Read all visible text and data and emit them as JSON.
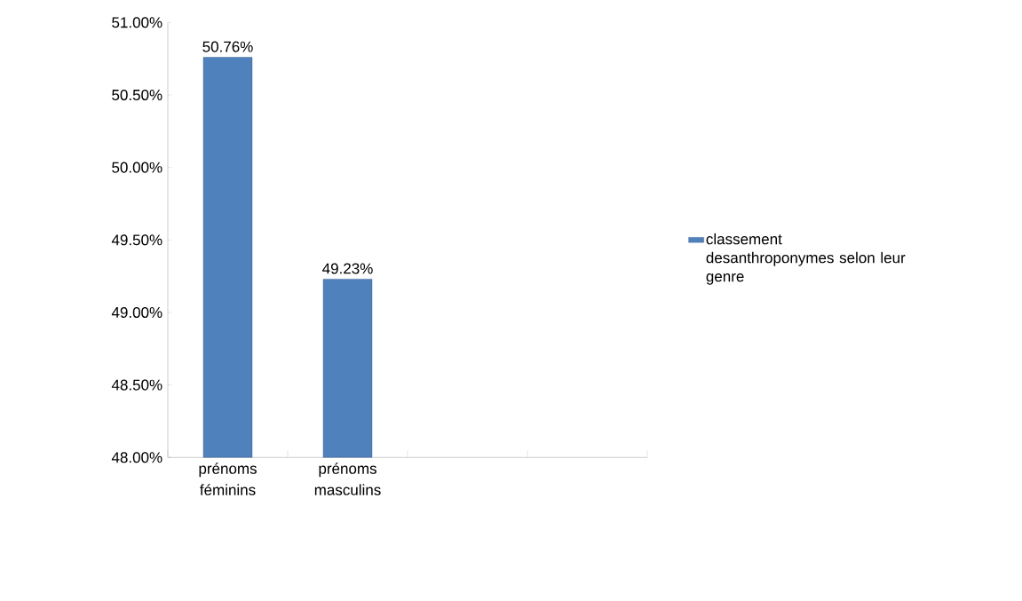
{
  "chart_data": {
    "type": "bar",
    "categories": [
      "prénoms féminins",
      "prénoms masculins",
      null,
      null
    ],
    "series": [
      {
        "name": "classement desanthroponymes selon leur genre",
        "color": "#4f81bd",
        "values": [
          50.76,
          49.23,
          null,
          null
        ],
        "value_labels": [
          "50.76%",
          "49.23%",
          null,
          null
        ]
      }
    ],
    "ylim": [
      48,
      51
    ],
    "yticks": [
      {
        "value": 48,
        "label": "48.00%"
      },
      {
        "value": 48.5,
        "label": "48.50%"
      },
      {
        "value": 49,
        "label": "49.00%"
      },
      {
        "value": 49.5,
        "label": "49.50%"
      },
      {
        "value": 50,
        "label": "50.00%"
      },
      {
        "value": 50.5,
        "label": "50.50%"
      },
      {
        "value": 51,
        "label": "51.00%"
      }
    ],
    "grid": false,
    "legend": "right"
  }
}
